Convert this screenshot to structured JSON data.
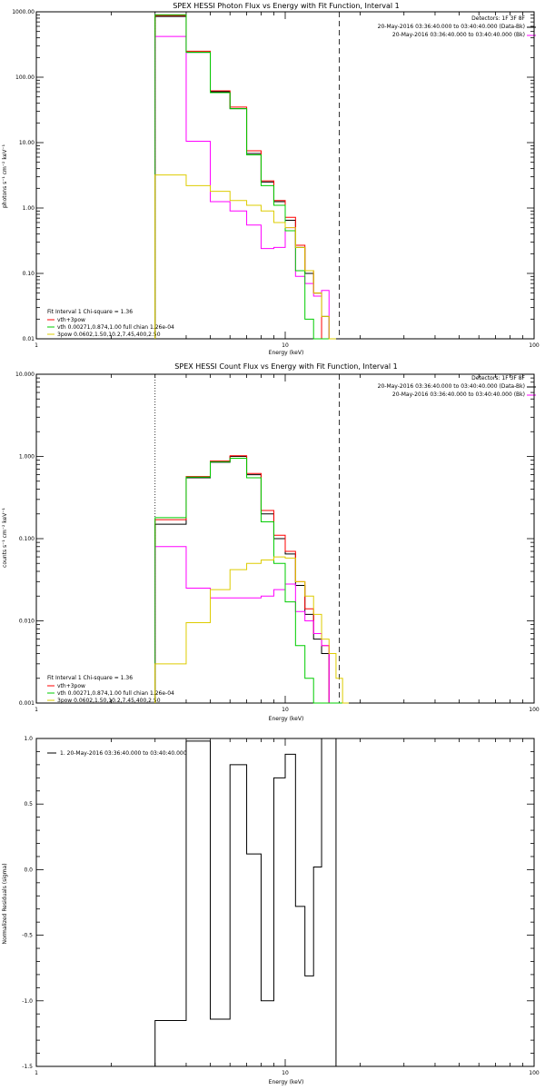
{
  "chart_data": [
    {
      "type": "line",
      "title": "SPEX HESSI Photon Flux vs Energy with Fit Function, Interval 1",
      "xlabel": "Energy (keV)",
      "ylabel": "photons s⁻¹ cm⁻² keV⁻¹",
      "xscale": "log",
      "yscale": "log",
      "xlim": [
        1,
        100
      ],
      "ylim": [
        0.01,
        1000
      ],
      "x_ticks": [
        "1",
        "10",
        "100"
      ],
      "y_ticks": [
        "0.01",
        "0.10",
        "1.00",
        "10.00",
        "100.00",
        "1000.00"
      ],
      "header_lines": [
        "Detectors: 1F 3F 8F",
        "20-May-2016 03:36:40.000 to 03:40:40.000 (Data-Bk)",
        "20-May-2016 03:36:40.000 to 03:40:40.000 (Bk)"
      ],
      "fit_text": "Fit Interval 1   Chi-square = 1.36",
      "legend_position": "bottom-left",
      "bin_edges": [
        3.0,
        4.0,
        5.0,
        6.0,
        7.0,
        8.0,
        9.0,
        10.0,
        11.0,
        12.0,
        13.0,
        14.0,
        15.0,
        16.0
      ],
      "series": [
        {
          "name": "",
          "color": "#000000",
          "values": [
            850,
            240,
            60,
            33,
            6.8,
            2.5,
            1.25,
            0.65,
            0.25,
            0.1,
            0.05,
            0.022,
            0.0
          ]
        },
        {
          "name": "",
          "color": "#ff0000",
          "values": [
            880,
            250,
            62,
            35,
            7.5,
            2.6,
            1.3,
            0.72,
            0.27,
            0.11,
            0.05,
            0.0,
            0.0
          ]
        },
        {
          "name": "",
          "color": "#ff00ff",
          "values": [
            420,
            10.5,
            1.25,
            0.9,
            0.55,
            0.24,
            0.25,
            0.5,
            0.09,
            0.07,
            0.045,
            0.055,
            0.0
          ]
        },
        {
          "name": "vth+3pow",
          "color": "#00cc00",
          "values": [
            900,
            240,
            58,
            33,
            6.5,
            2.2,
            1.1,
            0.45,
            0.11,
            0.02,
            0.0,
            0.0,
            0.0
          ]
        },
        {
          "name": "3pow 0.0602,1.50,10.2,7.45,400,2.50",
          "color": "#ddcc00",
          "values": [
            3.2,
            2.2,
            1.8,
            1.3,
            1.1,
            0.9,
            0.6,
            0.5,
            0.25,
            0.11,
            0.05,
            0.022,
            0.0
          ]
        }
      ],
      "legend": [
        {
          "label": "vth+3pow",
          "color": "#ff0000"
        },
        {
          "label": "vth 0.00271,0.874,1.00  full chian 1.26e-04",
          "color": "#00cc00"
        },
        {
          "label": "3pow 0.0602,1.50,10.2,7.45,400,2.50",
          "color": "#ddcc00"
        }
      ]
    },
    {
      "type": "line",
      "title": "SPEX HESSI Count Flux vs Energy with Fit Function, Interval 1",
      "xlabel": "Energy (keV)",
      "ylabel": "counts s⁻¹ cm⁻² keV⁻¹",
      "xscale": "log",
      "yscale": "log",
      "xlim": [
        1,
        100
      ],
      "ylim": [
        0.001,
        10
      ],
      "x_ticks": [
        "1",
        "10",
        "100"
      ],
      "y_ticks": [
        "0.001",
        "0.010",
        "0.100",
        "1.000",
        "10.000"
      ],
      "header_lines": [
        "Detectors: 1F 3F 8F",
        "20-May-2016 03:36:40.000 to 03:40:40.000 (Data-Bk)",
        "20-May-2016 03:36:40.000 to 03:40:40.000 (Bk)"
      ],
      "fit_text": "Fit Interval 1   Chi-square = 1.36",
      "legend_position": "bottom-left",
      "bin_edges": [
        3.0,
        4.0,
        5.0,
        6.0,
        7.0,
        8.0,
        9.0,
        10.0,
        11.0,
        12.0,
        13.0,
        14.0,
        15.0,
        16.0,
        17.0,
        18.0
      ],
      "series": [
        {
          "name": "",
          "color": "#000000",
          "values": [
            0.15,
            0.55,
            0.85,
            1.0,
            0.6,
            0.2,
            0.1,
            0.065,
            0.027,
            0.012,
            0.006,
            0.004,
            0.0,
            0.0,
            0.0
          ]
        },
        {
          "name": "",
          "color": "#ff0000",
          "values": [
            0.17,
            0.57,
            0.88,
            1.02,
            0.62,
            0.22,
            0.11,
            0.07,
            0.03,
            0.014,
            0.007,
            0.005,
            0.0,
            0.0,
            0.0
          ]
        },
        {
          "name": "",
          "color": "#ff00ff",
          "values": [
            0.08,
            0.025,
            0.019,
            0.019,
            0.019,
            0.02,
            0.024,
            0.028,
            0.013,
            0.01,
            0.007,
            0.005,
            0.0,
            0.0,
            0.0
          ]
        },
        {
          "name": "vth+3pow",
          "color": "#00cc00",
          "values": [
            0.18,
            0.56,
            0.86,
            0.95,
            0.55,
            0.16,
            0.05,
            0.017,
            0.005,
            0.002,
            0.001,
            0.0,
            0.0,
            0.0,
            0.0
          ]
        },
        {
          "name": "3pow 0.0602,1.50,10.2,7.45,400,2.50",
          "color": "#ddcc00",
          "values": [
            0.003,
            0.0095,
            0.024,
            0.042,
            0.05,
            0.055,
            0.06,
            0.058,
            0.03,
            0.02,
            0.012,
            0.006,
            0.004,
            0.002,
            0.001
          ]
        }
      ],
      "legend": [
        {
          "label": "vth+3pow",
          "color": "#ff0000"
        },
        {
          "label": "vth 0.00271,0.874,1.00  full chian 1.26e-04",
          "color": "#00cc00"
        },
        {
          "label": "3pow 0.0602,1.50,10.2,7.45,400,2.50",
          "color": "#ddcc00"
        }
      ]
    },
    {
      "type": "line",
      "title": "",
      "xlabel": "Energy (keV)",
      "ylabel": "Normalized Residuals (sigma)",
      "xscale": "log",
      "yscale": "linear",
      "xlim": [
        1,
        100
      ],
      "ylim": [
        -1.5,
        1.0
      ],
      "x_ticks": [
        "1",
        "10",
        "100"
      ],
      "y_ticks": [
        "-1.5",
        "-1.0",
        "-0.5",
        "0.0",
        "0.5",
        "1.0"
      ],
      "legend_position": "top-left",
      "bin_edges": [
        3.0,
        4.0,
        5.0,
        6.0,
        7.0,
        8.0,
        9.0,
        10.0,
        11.0,
        12.0,
        13.0,
        14.0,
        15.0,
        16.0
      ],
      "series": [
        {
          "name": "1. 20-May-2016 03:36:40.000 to 03:40:40.000",
          "color": "#000000",
          "values": [
            -1.15,
            0.98,
            -1.14,
            0.8,
            0.12,
            -1.0,
            0.7,
            0.88,
            -0.28,
            -0.81,
            0.02,
            1.0,
            1.0
          ]
        }
      ],
      "legend": [
        {
          "label": "1. 20-May-2016 03:36:40.000 to 03:40:40.000",
          "color": "#000000"
        }
      ]
    }
  ]
}
